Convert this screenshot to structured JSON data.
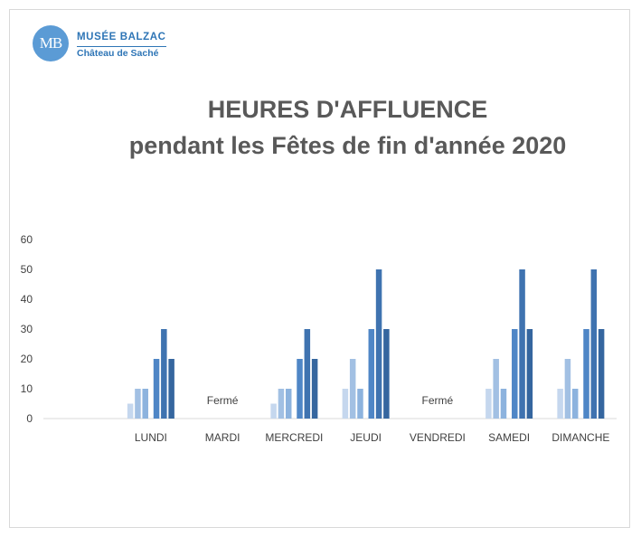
{
  "logo": {
    "initials": "MB",
    "name": "MUSÉE BALZAC",
    "subtitle": "Château de Saché"
  },
  "chart_data": {
    "type": "bar",
    "title": "HEURES D'AFFLUENCE",
    "subtitle": "pendant les Fêtes de fin d'année 2020",
    "categories": [
      "",
      "LUNDI",
      "MARDI",
      "MERCREDI",
      "JEUDI",
      "VENDREDI",
      "SAMEDI",
      "DIMANCHE"
    ],
    "ylim": [
      0,
      60
    ],
    "yticks": [
      0,
      10,
      20,
      30,
      40,
      50,
      60
    ],
    "grid": false,
    "legend": "none",
    "series_colors": [
      "#c5d7ee",
      "#a2c0e3",
      "#8db3de",
      "#4f86c6",
      "#3f73b0",
      "#35669f"
    ],
    "values": [
      [],
      [
        5,
        10,
        10,
        20,
        30,
        20
      ],
      [],
      [
        5,
        10,
        10,
        20,
        30,
        20
      ],
      [
        10,
        20,
        10,
        30,
        50,
        30
      ],
      [],
      [
        10,
        20,
        10,
        30,
        50,
        30
      ],
      [
        10,
        20,
        10,
        30,
        50,
        30
      ]
    ],
    "annotations": [
      {
        "category": "MARDI",
        "text": "Fermé"
      },
      {
        "category": "VENDREDI",
        "text": "Fermé"
      }
    ]
  }
}
